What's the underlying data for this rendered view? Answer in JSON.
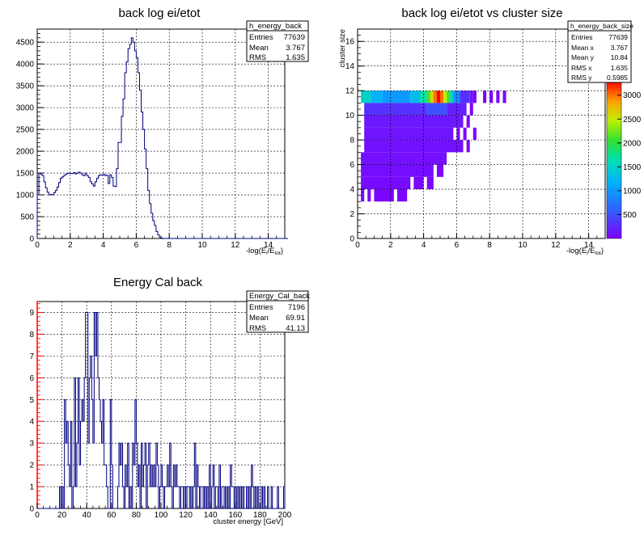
{
  "colors": {
    "histogram_line": "#00007f",
    "grid": "#000000",
    "y_axis_red": "#ff0000"
  },
  "chart_data": [
    {
      "type": "histogram",
      "title": "back  log ei/etot",
      "xlabel": "-log(E_i/E_tot)",
      "ylabel": "",
      "xlim": [
        0,
        15
      ],
      "ylim": [
        0,
        4800
      ],
      "xticks": [
        "0",
        "2",
        "4",
        "6",
        "8",
        "10",
        "12",
        "14"
      ],
      "yticks": [
        "0",
        "500",
        "1000",
        "1500",
        "2000",
        "2500",
        "3000",
        "3500",
        "4000",
        "4500"
      ],
      "grid": true,
      "stats": {
        "name": "h_energy_back",
        "rows": [
          {
            "label": "Entries",
            "value": "77639"
          },
          {
            "label": "Mean",
            "value": "3.767"
          },
          {
            "label": "RMS",
            "value": "1.635"
          }
        ]
      },
      "bin_width": 0.1,
      "x_start": 0,
      "values": [
        1000,
        1500,
        1470,
        1440,
        1300,
        1160,
        1060,
        1000,
        1010,
        1000,
        1050,
        1100,
        1180,
        1280,
        1380,
        1410,
        1440,
        1470,
        1490,
        1500,
        1490,
        1490,
        1510,
        1480,
        1500,
        1520,
        1500,
        1460,
        1440,
        1500,
        1440,
        1400,
        1300,
        1250,
        1200,
        1300,
        1380,
        1440,
        1460,
        1450,
        1470,
        1440,
        1450,
        1260,
        1460,
        1400,
        1200,
        1190,
        1600,
        2200,
        2200,
        2800,
        3200,
        3800,
        4050,
        4350,
        4450,
        4600,
        4500,
        4300,
        4150,
        3800,
        3400,
        2900,
        2500,
        2050,
        1600,
        1100,
        800,
        580,
        410,
        300,
        160,
        80,
        30,
        10,
        0,
        0,
        0,
        0,
        0,
        0,
        0,
        0,
        0,
        0,
        0,
        0,
        0,
        0,
        0,
        0,
        0,
        0,
        0,
        0,
        0,
        0,
        0,
        0,
        0,
        0,
        0,
        0,
        0,
        0,
        0,
        0,
        0,
        0,
        0,
        0,
        0,
        0,
        0,
        0,
        0,
        0,
        0,
        0,
        0,
        0,
        0,
        0,
        0,
        0,
        0,
        0,
        0,
        0,
        0,
        0,
        0,
        0,
        0,
        0,
        0,
        0,
        0,
        0,
        0,
        0,
        0,
        0,
        0,
        0,
        0,
        0,
        0,
        0,
        0,
        0
      ]
    },
    {
      "type": "heatmap",
      "title": "back  log ei/etot vs cluster size",
      "xlabel": "-log(E_i/E_tot)",
      "ylabel": "cluster size",
      "xlim": [
        0,
        15
      ],
      "ylim": [
        0,
        17
      ],
      "xticks": [
        "0",
        "2",
        "4",
        "6",
        "8",
        "10",
        "12",
        "14"
      ],
      "yticks": [
        "0",
        "2",
        "4",
        "6",
        "8",
        "10",
        "12",
        "14",
        "16"
      ],
      "grid": true,
      "stats": {
        "name": "h_energy_back_size",
        "rows": [
          {
            "label": "Entries",
            "value": "77639"
          },
          {
            "label": "Mean x",
            "value": "3.767"
          },
          {
            "label": "Mean y",
            "value": "10.84"
          },
          {
            "label": "RMS x",
            "value": "1.635"
          },
          {
            "label": "RMS y",
            "value": "0.5985"
          }
        ]
      },
      "palette_ticks": [
        "500",
        "1000",
        "1500",
        "2000",
        "2500",
        "3000"
      ],
      "zlim": [
        0,
        3300
      ],
      "cells": [
        {
          "y": 12,
          "x0": 0.2,
          "x1": 0.8,
          "z": 1500
        },
        {
          "y": 12,
          "x0": 0.8,
          "x1": 1.5,
          "z": 1200
        },
        {
          "y": 12,
          "x0": 1.5,
          "x1": 3.2,
          "z": 1000
        },
        {
          "y": 12,
          "x0": 3.2,
          "x1": 3.8,
          "z": 1300
        },
        {
          "y": 12,
          "x0": 3.8,
          "x1": 4.2,
          "z": 1700
        },
        {
          "y": 12,
          "x0": 4.2,
          "x1": 4.4,
          "z": 2100
        },
        {
          "y": 12,
          "x0": 4.4,
          "x1": 4.6,
          "z": 2600
        },
        {
          "y": 12,
          "x0": 4.6,
          "x1": 4.8,
          "z": 3000
        },
        {
          "y": 12,
          "x0": 4.8,
          "x1": 5.0,
          "z": 3300
        },
        {
          "y": 12,
          "x0": 5.0,
          "x1": 5.2,
          "z": 3000
        },
        {
          "y": 12,
          "x0": 5.2,
          "x1": 5.4,
          "z": 2500
        },
        {
          "y": 12,
          "x0": 5.4,
          "x1": 5.6,
          "z": 2100
        },
        {
          "y": 12,
          "x0": 5.6,
          "x1": 5.8,
          "z": 1500
        },
        {
          "y": 12,
          "x0": 5.8,
          "x1": 6.2,
          "z": 900
        },
        {
          "y": 12,
          "x0": 6.2,
          "x1": 6.8,
          "z": 300
        },
        {
          "y": 12,
          "x0": 6.8,
          "x1": 7.0,
          "z": 150
        },
        {
          "y": 12,
          "x0": 7.0,
          "x1": 7.2,
          "z": 50
        },
        {
          "y": 12,
          "x0": 7.6,
          "x1": 7.8,
          "z": 20
        },
        {
          "y": 12,
          "x0": 8.0,
          "x1": 8.2,
          "z": 20
        },
        {
          "y": 12,
          "x0": 8.4,
          "x1": 8.6,
          "z": 20
        },
        {
          "y": 12,
          "x0": 8.8,
          "x1": 9.0,
          "z": 20
        },
        {
          "y": 11,
          "x0": 0.4,
          "x1": 4.2,
          "z": 300
        },
        {
          "y": 11,
          "x0": 4.2,
          "x1": 5.4,
          "z": 500
        },
        {
          "y": 11,
          "x0": 5.4,
          "x1": 6.6,
          "z": 200
        },
        {
          "y": 11,
          "x0": 6.8,
          "x1": 7.0,
          "z": 30
        },
        {
          "y": 10,
          "x0": 0.4,
          "x1": 6.4,
          "z": 150
        },
        {
          "y": 10,
          "x0": 6.6,
          "x1": 6.8,
          "z": 20
        },
        {
          "y": 9,
          "x0": 0.4,
          "x1": 5.8,
          "z": 120
        },
        {
          "y": 9,
          "x0": 6.0,
          "x1": 6.2,
          "z": 20
        },
        {
          "y": 9,
          "x0": 6.4,
          "x1": 6.6,
          "z": 20
        },
        {
          "y": 9,
          "x0": 7.0,
          "x1": 7.2,
          "z": 20
        },
        {
          "y": 8,
          "x0": 0.4,
          "x1": 6.4,
          "z": 100
        },
        {
          "y": 8,
          "x0": 6.6,
          "x1": 6.8,
          "z": 20
        },
        {
          "y": 7,
          "x0": 0.2,
          "x1": 5.4,
          "z": 90
        },
        {
          "y": 6,
          "x0": 0.2,
          "x1": 4.6,
          "z": 80
        },
        {
          "y": 6,
          "x0": 4.8,
          "x1": 5.2,
          "z": 20
        },
        {
          "y": 5,
          "x0": 0.2,
          "x1": 3.2,
          "z": 70
        },
        {
          "y": 5,
          "x0": 3.4,
          "x1": 4.0,
          "z": 40
        },
        {
          "y": 5,
          "x0": 4.2,
          "x1": 4.6,
          "z": 20
        },
        {
          "y": 4,
          "x0": 0.2,
          "x1": 0.4,
          "z": 30
        },
        {
          "y": 4,
          "x0": 0.6,
          "x1": 0.8,
          "z": 30
        },
        {
          "y": 4,
          "x0": 1.0,
          "x1": 2.2,
          "z": 30
        },
        {
          "y": 4,
          "x0": 2.4,
          "x1": 3.0,
          "z": 30
        }
      ]
    },
    {
      "type": "histogram",
      "title": "Energy Cal back",
      "xlabel": "cluster energy [GeV]",
      "ylabel": "",
      "xlim": [
        0,
        200
      ],
      "ylim": [
        0,
        9.5
      ],
      "xticks": [
        "0",
        "20",
        "40",
        "60",
        "80",
        "100",
        "120",
        "140",
        "160",
        "180",
        "200"
      ],
      "yticks": [
        "0",
        "1",
        "2",
        "3",
        "4",
        "5",
        "6",
        "7",
        "8",
        "9"
      ],
      "grid": true,
      "stats": {
        "name": "Energy_Cal_back",
        "rows": [
          {
            "label": "Entries",
            "value": "7196"
          },
          {
            "label": "Mean",
            "value": "69.91"
          },
          {
            "label": "RMS",
            "value": "41.13"
          }
        ]
      },
      "bin_width": 1,
      "x_start": 0,
      "values": [
        0,
        0,
        0,
        0,
        0,
        0,
        0,
        0,
        0,
        0,
        0,
        0,
        0,
        0,
        0,
        0,
        0,
        0,
        1,
        0,
        1,
        0,
        5,
        3,
        4,
        2,
        1,
        4,
        0,
        1,
        6,
        1,
        3,
        6,
        2,
        4,
        5,
        4,
        6,
        9,
        9,
        3,
        6,
        7,
        5,
        3,
        9,
        7,
        9,
        6,
        5,
        4,
        3,
        5,
        2,
        2,
        1,
        0,
        0,
        5,
        2,
        0,
        0,
        0,
        0,
        1,
        3,
        2,
        3,
        1,
        0,
        2,
        1,
        3,
        0,
        1,
        0,
        3,
        2,
        5,
        3,
        1,
        2,
        0,
        3,
        1,
        2,
        3,
        0,
        2,
        3,
        1,
        2,
        1,
        2,
        1,
        3,
        2,
        0,
        1,
        2,
        1,
        0,
        1,
        1,
        2,
        1,
        3,
        1,
        0,
        2,
        1,
        2,
        1,
        1,
        0,
        1,
        1,
        0,
        1,
        0,
        1,
        1,
        0,
        1,
        0,
        1,
        3,
        0,
        2,
        1,
        0,
        1,
        1,
        0,
        1,
        0,
        1,
        0,
        2,
        0,
        1,
        2,
        0,
        1,
        1,
        0,
        2,
        0,
        1,
        1,
        0,
        1,
        0,
        1,
        0,
        2,
        1,
        1,
        0,
        1,
        0,
        1,
        0,
        1,
        0,
        1,
        0,
        0,
        1,
        0,
        1,
        0,
        2,
        1,
        0,
        1,
        0,
        1,
        0,
        0,
        1,
        0,
        1,
        0,
        0,
        1,
        0,
        0,
        1,
        0,
        0,
        0,
        0,
        1,
        0,
        0,
        0,
        0,
        1
      ]
    }
  ]
}
